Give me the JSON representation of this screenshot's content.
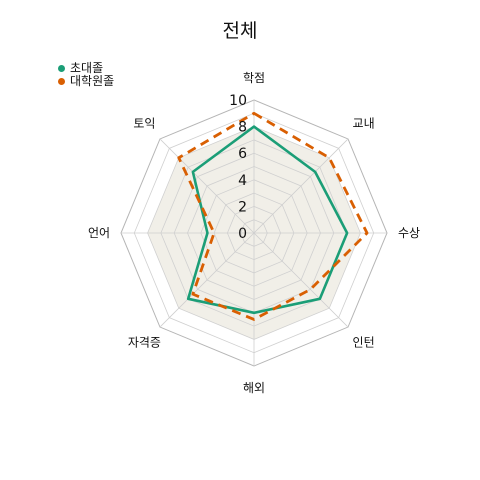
{
  "chart_data": {
    "type": "radar",
    "title": "전체",
    "categories": [
      "학점",
      "교내",
      "수상",
      "인턴",
      "해외",
      "자격증",
      "언어",
      "토익"
    ],
    "series": [
      {
        "name": "초대졸",
        "values": [
          8.0,
          6.5,
          7.0,
          7.0,
          6.0,
          7.0,
          3.5,
          6.5
        ],
        "color": "#1b9e77",
        "style": "solid"
      },
      {
        "name": "대학원졸",
        "values": [
          9.0,
          8.0,
          8.5,
          6.0,
          6.5,
          6.5,
          3.0,
          8.0
        ],
        "color": "#d95f02",
        "style": "dashed"
      }
    ],
    "rlim": [
      0,
      10
    ],
    "r_ticks": [
      "0",
      "2",
      "4",
      "6",
      "8",
      "10"
    ],
    "grid": true,
    "legend": "top-left"
  }
}
